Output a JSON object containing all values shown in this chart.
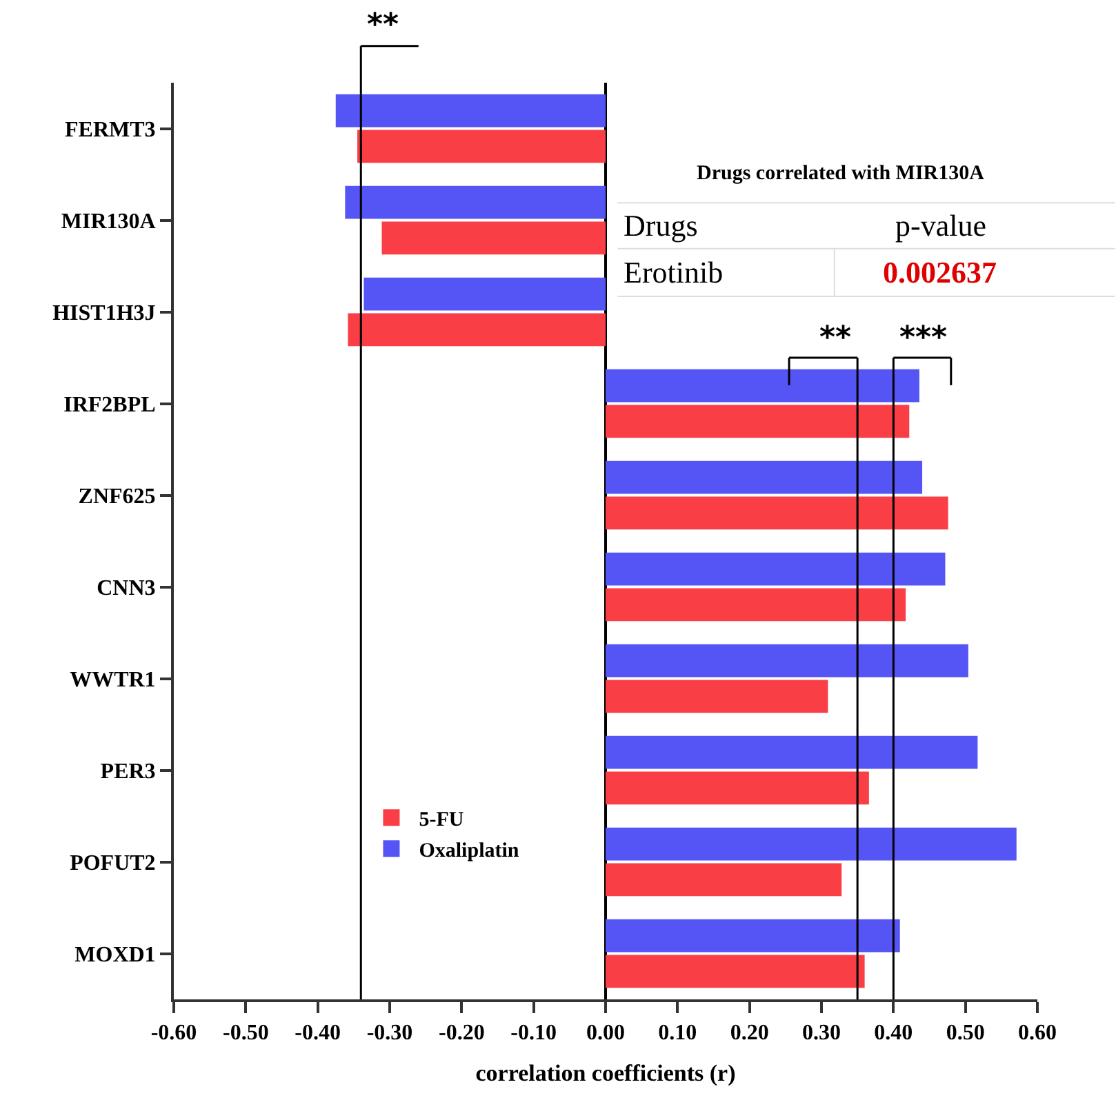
{
  "chart_data": {
    "type": "bar",
    "orientation": "horizontal",
    "categories": [
      "FERMT3",
      "MIR130A",
      "HIST1H3J",
      "IRF2BPL",
      "ZNF625",
      "CNN3",
      "WWTR1",
      "PER3",
      "POFUT2",
      "MOXD1"
    ],
    "series": [
      {
        "name": "5-FU",
        "color": "#f93e45",
        "values": [
          -0.345,
          -0.311,
          -0.358,
          0.422,
          0.476,
          0.417,
          0.309,
          0.366,
          0.328,
          0.36
        ]
      },
      {
        "name": "Oxaliplatin",
        "color": "#5555f5",
        "values": [
          -0.375,
          -0.362,
          -0.336,
          0.436,
          0.44,
          0.472,
          0.504,
          0.517,
          0.571,
          0.409
        ]
      }
    ],
    "xlabel": "correlation coefficients (r)",
    "xlim": [
      -0.6,
      0.6
    ],
    "xticks": [
      {
        "value": -0.6,
        "label": "-0.60"
      },
      {
        "value": -0.5,
        "label": "-0.50"
      },
      {
        "value": -0.4,
        "label": "-0.40"
      },
      {
        "value": -0.3,
        "label": "-0.30"
      },
      {
        "value": -0.2,
        "label": "-0.20"
      },
      {
        "value": -0.1,
        "label": "-0.10"
      },
      {
        "value": 0,
        "label": "0.00"
      },
      {
        "value": 0.1,
        "label": "0.10"
      },
      {
        "value": 0.2,
        "label": "0.20"
      },
      {
        "value": 0.3,
        "label": "0.30"
      },
      {
        "value": 0.4,
        "label": "0.40"
      },
      {
        "value": 0.5,
        "label": "0.50"
      },
      {
        "value": 0.6,
        "label": "0.60"
      }
    ],
    "ref_lines": [
      {
        "axis": "x",
        "value": -0.34,
        "label": "**"
      },
      {
        "axis": "x",
        "value": 0.35,
        "label": "**"
      },
      {
        "axis": "x",
        "value": 0.4,
        "label": "***"
      }
    ],
    "annotations": [
      "Drugs correlated with MIR130A",
      "Drugs",
      "p-value",
      "Erotinib",
      "0.002637"
    ],
    "legend": "bottom left",
    "grid": false
  }
}
